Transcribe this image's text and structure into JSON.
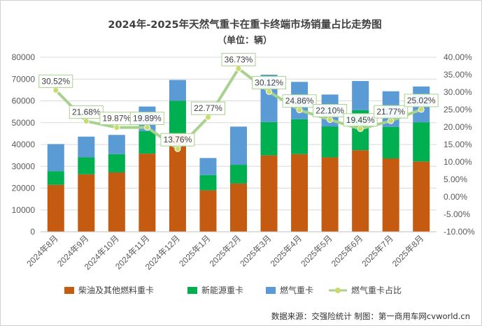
{
  "chart_data": {
    "type": "bar",
    "stacked": true,
    "title": "2024年-2025年天然气重卡在重卡终端市场销量占比走势图",
    "subtitle": "（单位：辆）",
    "categories": [
      "2024年8月",
      "2024年9月",
      "2024年10月",
      "2024年11月",
      "2024年12月",
      "2025年1月",
      "2025年2月",
      "2025年3月",
      "2025年4月",
      "2025年5月",
      "2025年6月",
      "2025年7月",
      "2025年8月"
    ],
    "series": [
      {
        "name": "柴油及其他燃料重卡",
        "color": "#C55A11",
        "axis": "left",
        "values": [
          21500,
          26300,
          27200,
          35800,
          44800,
          19000,
          22100,
          35000,
          35600,
          34100,
          37400,
          33600,
          32200
        ]
      },
      {
        "name": "新能源重卡",
        "color": "#00B050",
        "axis": "left",
        "values": [
          6300,
          7800,
          8400,
          10300,
          15200,
          7000,
          8600,
          15300,
          16000,
          14200,
          18300,
          14500,
          18000
        ]
      },
      {
        "name": "燃气重卡",
        "color": "#5B9BD5",
        "axis": "left",
        "values": [
          12400,
          9500,
          8800,
          11300,
          9600,
          7800,
          17500,
          21700,
          17100,
          14600,
          13400,
          16300,
          16400
        ]
      },
      {
        "name": "燃气重卡占比",
        "type": "line",
        "color": "#A9D18E",
        "marker_color": "#C9DB6B",
        "axis": "right",
        "values": [
          30.52,
          21.68,
          19.87,
          19.89,
          13.76,
          22.77,
          36.73,
          30.12,
          24.86,
          22.1,
          19.45,
          21.77,
          25.02
        ],
        "labels": [
          "30.52%",
          "21.68%",
          "19.87%",
          "19.89%",
          "13.76%",
          "22.77%",
          "36.73%",
          "30.12%",
          "24.86%",
          "22.10%",
          "19.45%",
          "21.77%",
          "25.02%"
        ]
      }
    ],
    "y_left": {
      "min": 0,
      "max": 80000,
      "ticks": [
        "0",
        "10000",
        "20000",
        "30000",
        "40000",
        "50000",
        "60000",
        "70000",
        "80000"
      ]
    },
    "y_right": {
      "min": -10,
      "max": 40,
      "ticks": [
        "-10.00%",
        "-5.00%",
        "0.00%",
        "5.00%",
        "10.00%",
        "15.00%",
        "20.00%",
        "25.00%",
        "30.00%",
        "35.00%",
        "40.00%"
      ]
    },
    "grid": true,
    "legend_position": "bottom",
    "source_note": "数据来源：交强险统计  制图：第一商用车网cvworld.cn"
  }
}
